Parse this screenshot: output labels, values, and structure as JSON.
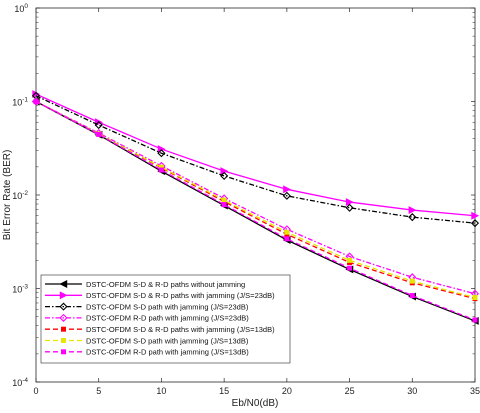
{
  "chart_data": {
    "type": "line",
    "xlabel": "Eb/N0(dB)",
    "ylabel": "Bit Error Rate (BER)",
    "xlim": [
      0,
      35
    ],
    "ylim": [
      0.0001,
      1
    ],
    "yscale": "log",
    "xticks": [
      "0",
      "5",
      "10",
      "15",
      "20",
      "25",
      "30",
      "35"
    ],
    "yticks": [
      {
        "base": "10",
        "exp": "0"
      },
      {
        "base": "10",
        "exp": "-1"
      },
      {
        "base": "10",
        "exp": "-2"
      },
      {
        "base": "10",
        "exp": "-3"
      },
      {
        "base": "10",
        "exp": "-4"
      }
    ],
    "grid": false,
    "legend_position": "bottom-left",
    "x": [
      0,
      5,
      10,
      15,
      20,
      25,
      30,
      35
    ],
    "series": [
      {
        "name": "DSTC-OFDM S-D & R-D paths without jamming",
        "color": "#000000",
        "dash": "solid",
        "marker": "triangle-left",
        "values": [
          0.1,
          0.044,
          0.018,
          0.0077,
          0.0033,
          0.0016,
          0.00082,
          0.00045
        ]
      },
      {
        "name": "DSTC-OFDM S-D & R-D paths with jamming (J/S=23dB)",
        "color": "#ff00ff",
        "dash": "solid",
        "marker": "triangle-right",
        "values": [
          0.12,
          0.06,
          0.031,
          0.018,
          0.0115,
          0.0084,
          0.0069,
          0.006
        ]
      },
      {
        "name": "DSTC-OFDM S-D path with jamming (J/S=23dB)",
        "color": "#000000",
        "dash": "dashdot",
        "marker": "diamond",
        "values": [
          0.115,
          0.056,
          0.028,
          0.016,
          0.0098,
          0.0073,
          0.0058,
          0.005
        ]
      },
      {
        "name": "DSTC-OFDM R-D path with jamming (J/S=23dB)",
        "color": "#ff00ff",
        "dash": "dashdot",
        "marker": "diamond",
        "values": [
          0.1,
          0.046,
          0.0205,
          0.0092,
          0.0043,
          0.0022,
          0.00132,
          0.00088
        ]
      },
      {
        "name": "DSTC-OFDM S-D & R-D paths with jamming (J/S=13dB)",
        "color": "#ff0000",
        "dash": "dashed",
        "marker": "square",
        "values": [
          0.1,
          0.045,
          0.0195,
          0.0085,
          0.0038,
          0.0019,
          0.00115,
          0.00078
        ]
      },
      {
        "name": "DSTC-OFDM S-D path with jamming (J/S=13dB)",
        "color": "#e6e600",
        "dash": "dashed",
        "marker": "square",
        "values": [
          0.1,
          0.045,
          0.0198,
          0.0088,
          0.004,
          0.002,
          0.0012,
          0.0008
        ]
      },
      {
        "name": "DSTC-OFDM R-D path with jamming (J/S=13dB)",
        "color": "#ff00ff",
        "dash": "dashed",
        "marker": "square",
        "values": [
          0.1,
          0.0445,
          0.0185,
          0.0079,
          0.0034,
          0.00165,
          0.00084,
          0.00046
        ]
      }
    ]
  }
}
